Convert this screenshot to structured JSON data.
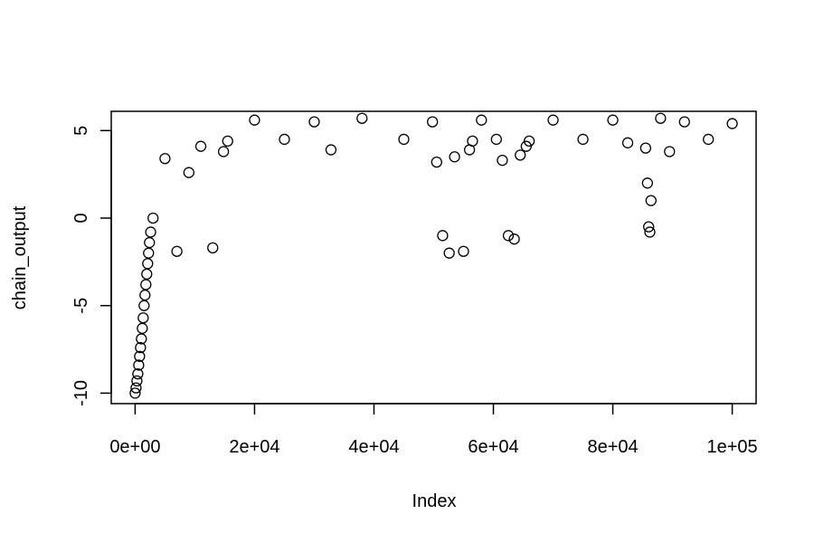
{
  "chart_data": {
    "type": "scatter",
    "title": "",
    "xlabel": "Index",
    "ylabel": "chain_output",
    "xlim": [
      -4000,
      104000
    ],
    "ylim": [
      -10.6,
      6.1
    ],
    "x_ticks": [
      {
        "value": 0,
        "label": "0e+00"
      },
      {
        "value": 20000,
        "label": "2e+04"
      },
      {
        "value": 40000,
        "label": "4e+04"
      },
      {
        "value": 60000,
        "label": "6e+04"
      },
      {
        "value": 80000,
        "label": "8e+04"
      },
      {
        "value": 100000,
        "label": "1e+05"
      }
    ],
    "y_ticks": [
      {
        "value": -10,
        "label": "-10"
      },
      {
        "value": -5,
        "label": "-5"
      },
      {
        "value": 0,
        "label": "0"
      },
      {
        "value": 5,
        "label": "5"
      }
    ],
    "marker": "open-circle",
    "marker_color": "#000000",
    "grid": false,
    "legend": "none",
    "series": [
      {
        "points": [
          [
            0,
            -10.0
          ],
          [
            150,
            -9.7
          ],
          [
            300,
            -9.3
          ],
          [
            450,
            -8.9
          ],
          [
            600,
            -8.4
          ],
          [
            750,
            -7.9
          ],
          [
            900,
            -7.4
          ],
          [
            1050,
            -6.9
          ],
          [
            1200,
            -6.3
          ],
          [
            1350,
            -5.7
          ],
          [
            1500,
            -5.0
          ],
          [
            1650,
            -4.4
          ],
          [
            1800,
            -3.8
          ],
          [
            1950,
            -3.2
          ],
          [
            2100,
            -2.6
          ],
          [
            2250,
            -2.0
          ],
          [
            2400,
            -1.4
          ],
          [
            2600,
            -0.8
          ],
          [
            3000,
            0.0
          ],
          [
            5000,
            3.4
          ],
          [
            7000,
            -1.9
          ],
          [
            9000,
            2.6
          ],
          [
            11000,
            4.1
          ],
          [
            13000,
            -1.7
          ],
          [
            14800,
            3.8
          ],
          [
            15500,
            4.4
          ],
          [
            20000,
            5.6
          ],
          [
            25000,
            4.5
          ],
          [
            30000,
            5.5
          ],
          [
            32800,
            3.9
          ],
          [
            38000,
            5.7
          ],
          [
            45000,
            4.5
          ],
          [
            49800,
            5.5
          ],
          [
            50500,
            3.2
          ],
          [
            51500,
            -1.0
          ],
          [
            52600,
            -2.0
          ],
          [
            53500,
            3.5
          ],
          [
            55000,
            -1.9
          ],
          [
            56000,
            3.9
          ],
          [
            56500,
            4.4
          ],
          [
            58000,
            5.6
          ],
          [
            60500,
            4.5
          ],
          [
            61500,
            3.3
          ],
          [
            62500,
            -1.0
          ],
          [
            63500,
            -1.2
          ],
          [
            64500,
            3.6
          ],
          [
            65500,
            4.1
          ],
          [
            66000,
            4.4
          ],
          [
            70000,
            5.6
          ],
          [
            75000,
            4.5
          ],
          [
            80000,
            5.6
          ],
          [
            82500,
            4.3
          ],
          [
            85500,
            4.0
          ],
          [
            85800,
            2.0
          ],
          [
            86000,
            -0.5
          ],
          [
            86200,
            -0.8
          ],
          [
            86400,
            1.0
          ],
          [
            88000,
            5.7
          ],
          [
            89500,
            3.8
          ],
          [
            92000,
            5.5
          ],
          [
            96000,
            4.5
          ],
          [
            100000,
            5.4
          ]
        ]
      }
    ]
  }
}
